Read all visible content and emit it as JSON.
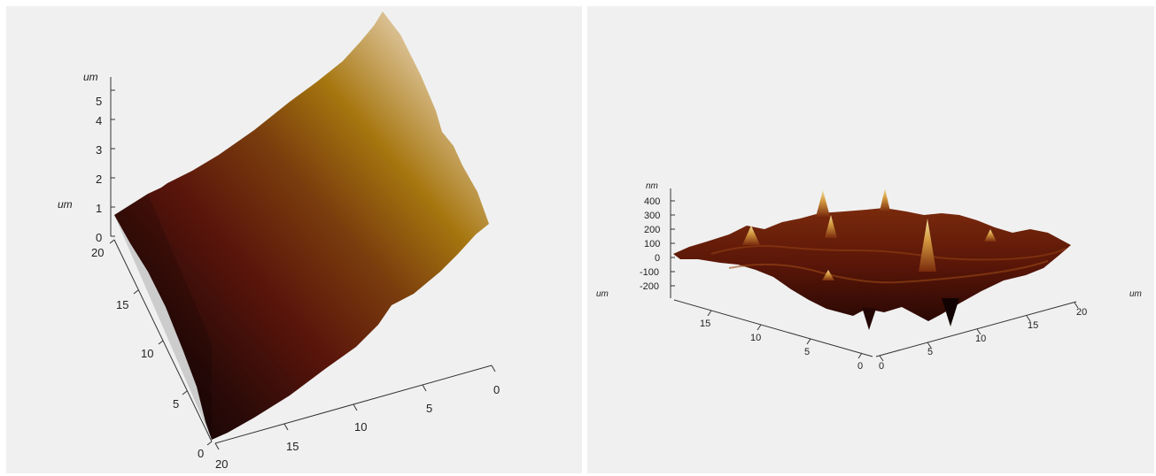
{
  "chart_data": [
    {
      "type": "surface3d",
      "title": "",
      "z_unit": "um",
      "y_unit": "um",
      "z_ticks": [
        "0",
        "1",
        "2",
        "3",
        "4",
        "5"
      ],
      "y_ticks": [
        "0",
        "5",
        "10",
        "15",
        "20"
      ],
      "x_ticks": [
        "20",
        "15",
        "10",
        "5",
        "0"
      ],
      "colormap": [
        "#0d0505",
        "#3a0e0a",
        "#6e1e0e",
        "#9a6a12",
        "#c8a15a",
        "#f4efe6"
      ]
    },
    {
      "type": "surface3d",
      "title": "",
      "z_unit": "nm",
      "x_unit": "um",
      "y_unit": "um",
      "z_ticks": [
        "400",
        "300",
        "200",
        "100",
        "0",
        "-100",
        "-200"
      ],
      "left_ticks": [
        "15",
        "10",
        "5",
        "0"
      ],
      "right_ticks": [
        "0",
        "5",
        "10",
        "15",
        "20"
      ],
      "colormap": [
        "#1a0402",
        "#4a0f06",
        "#7a2a0c",
        "#a85a18",
        "#e0b060",
        "#f6e7b5"
      ]
    }
  ]
}
